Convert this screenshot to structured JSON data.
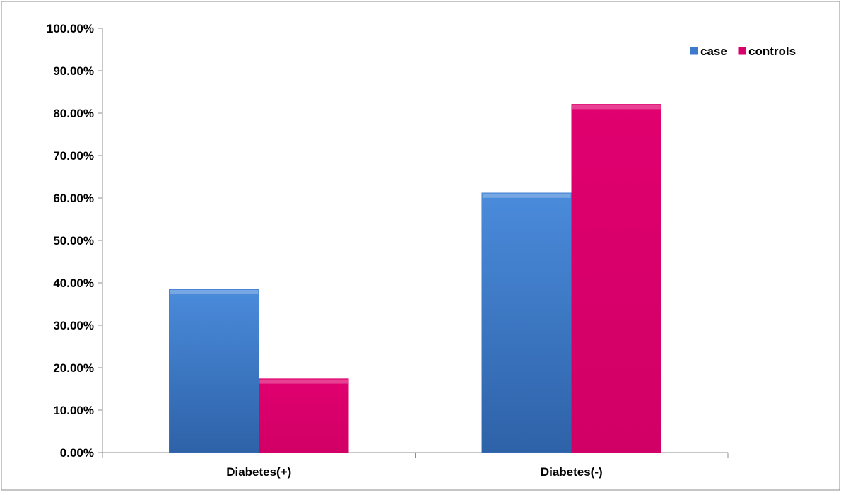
{
  "chart_data": {
    "type": "bar",
    "title": "",
    "xlabel": "",
    "ylabel": "",
    "categories": [
      "Diabetes(+)",
      "Diabetes(-)"
    ],
    "series": [
      {
        "name": "case",
        "values": [
          38.5,
          61.2
        ],
        "color": "#3E7ACB"
      },
      {
        "name": "controls",
        "values": [
          17.4,
          82.1
        ],
        "color": "#D8006B"
      }
    ],
    "ylim": [
      0,
      100
    ],
    "yticks": [
      "0.00%",
      "10.00%",
      "20.00%",
      "30.00%",
      "40.00%",
      "50.00%",
      "60.00%",
      "70.00%",
      "80.00%",
      "90.00%",
      "100.00%"
    ],
    "grid": false,
    "legend_position": "top-right"
  }
}
